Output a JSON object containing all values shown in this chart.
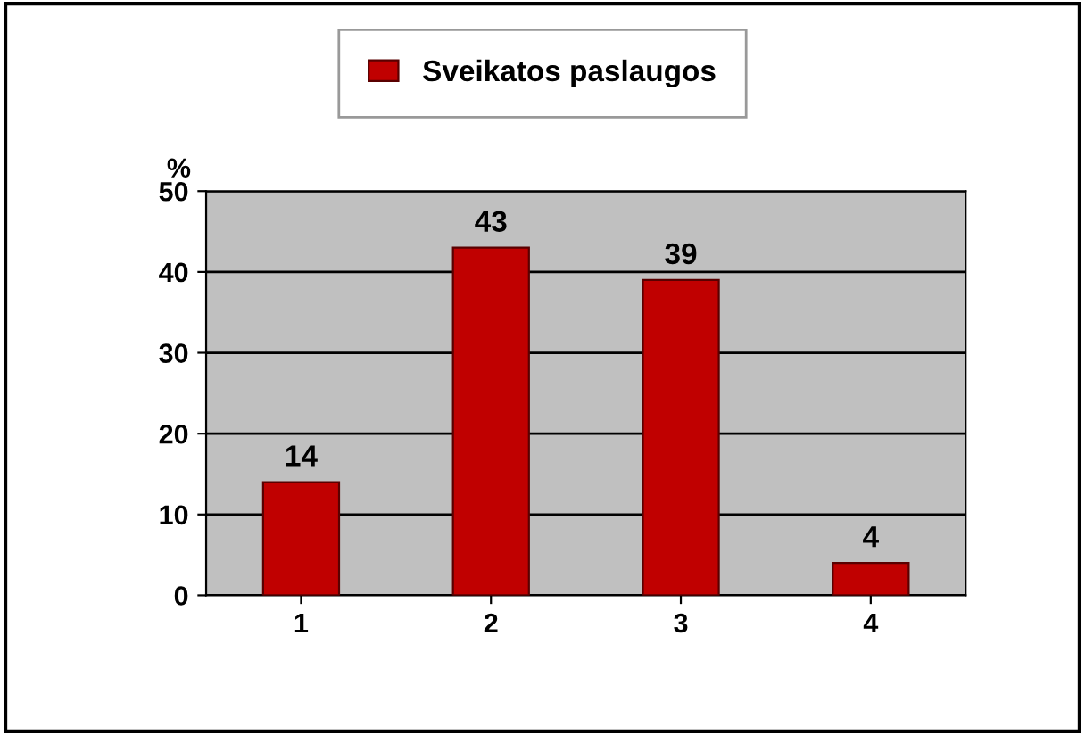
{
  "chart_data": {
    "type": "bar",
    "ylabel": "%",
    "categories": [
      "1",
      "2",
      "3",
      "4"
    ],
    "series": [
      {
        "name": "Sveikatos paslaugos",
        "color": "#c00000",
        "values": [
          14,
          43,
          39,
          4
        ]
      }
    ],
    "ylim": [
      0,
      50
    ],
    "yticks": [
      0,
      10,
      20,
      30,
      40,
      50
    ],
    "grid": "y",
    "legend": "top",
    "data_labels": true
  }
}
